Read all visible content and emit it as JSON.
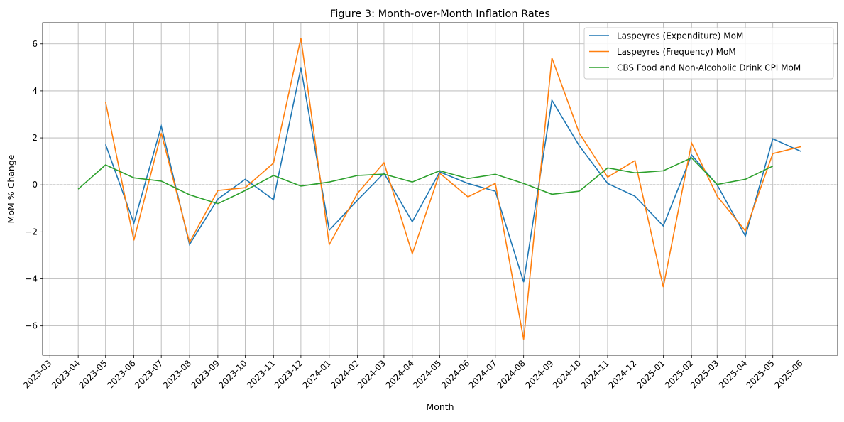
{
  "chart_data": {
    "type": "line",
    "title": "Figure 3: Month-over-Month Inflation Rates",
    "xlabel": "Month",
    "ylabel": "MoM % Change",
    "xlim": [
      "2023-02-21",
      "2025-07-11"
    ],
    "ylim": [
      -7.25,
      6.9
    ],
    "grid": true,
    "zero_line": {
      "y": 0,
      "style": "dashed",
      "color": "#808080"
    },
    "legend_placement": "top-right",
    "x_ticks": [
      "2023-03",
      "2023-04",
      "2023-05",
      "2023-06",
      "2023-07",
      "2023-08",
      "2023-09",
      "2023-10",
      "2023-11",
      "2023-12",
      "2024-01",
      "2024-02",
      "2024-03",
      "2024-04",
      "2024-05",
      "2024-06",
      "2024-07",
      "2024-08",
      "2024-09",
      "2024-10",
      "2024-11",
      "2024-12",
      "2025-01",
      "2025-02",
      "2025-03",
      "2025-04",
      "2025-05",
      "2025-06"
    ],
    "y_ticks": [
      6,
      4,
      2,
      0,
      -2,
      -4,
      -6
    ],
    "series": [
      {
        "name": "Laspeyres (Expenditure) MoM",
        "color": "#1f77b4",
        "x": [
          "2023-05",
          "2023-06",
          "2023-07",
          "2023-08",
          "2023-09",
          "2023-10",
          "2023-11",
          "2023-12",
          "2024-01",
          "2024-02",
          "2024-03",
          "2024-04",
          "2024-05",
          "2024-06",
          "2024-07",
          "2024-08",
          "2024-09",
          "2024-10",
          "2024-11",
          "2024-12",
          "2025-01",
          "2025-02",
          "2025-03",
          "2025-04",
          "2025-05",
          "2025-06"
        ],
        "values": [
          1.72,
          -1.63,
          2.5,
          -2.54,
          -0.6,
          0.24,
          -0.63,
          4.98,
          -1.93,
          -0.65,
          0.5,
          -1.57,
          0.55,
          0.06,
          -0.27,
          -4.14,
          3.6,
          1.66,
          0.06,
          -0.48,
          -1.75,
          1.27,
          0.0,
          -2.18,
          1.96,
          1.42
        ]
      },
      {
        "name": "Laspeyres (Frequency) MoM",
        "color": "#ff7f0e",
        "x": [
          "2023-05",
          "2023-06",
          "2023-07",
          "2023-08",
          "2023-09",
          "2023-10",
          "2023-11",
          "2023-12",
          "2024-01",
          "2024-02",
          "2024-03",
          "2024-04",
          "2024-05",
          "2024-06",
          "2024-07",
          "2024-08",
          "2024-09",
          "2024-10",
          "2024-11",
          "2024-12",
          "2025-01",
          "2025-02",
          "2025-03",
          "2025-04",
          "2025-05",
          "2025-06"
        ],
        "values": [
          3.53,
          -2.36,
          2.2,
          -2.45,
          -0.24,
          -0.12,
          0.93,
          6.25,
          -2.54,
          -0.36,
          0.94,
          -2.93,
          0.5,
          -0.51,
          0.06,
          -6.58,
          5.4,
          2.2,
          0.33,
          1.03,
          -4.35,
          1.78,
          -0.48,
          -1.96,
          1.33,
          1.63
        ]
      },
      {
        "name": "CBS Food and Non-Alcoholic Drink CPI MoM",
        "color": "#2ca02c",
        "x": [
          "2023-04",
          "2023-05",
          "2023-06",
          "2023-07",
          "2023-08",
          "2023-09",
          "2023-10",
          "2023-11",
          "2023-12",
          "2024-01",
          "2024-02",
          "2024-03",
          "2024-04",
          "2024-05",
          "2024-06",
          "2024-07",
          "2024-08",
          "2024-09",
          "2024-10",
          "2024-11",
          "2024-12",
          "2025-01",
          "2025-02",
          "2025-03",
          "2025-04",
          "2025-05"
        ],
        "values": [
          -0.18,
          0.85,
          0.3,
          0.16,
          -0.42,
          -0.8,
          -0.24,
          0.4,
          -0.05,
          0.12,
          0.4,
          0.46,
          0.12,
          0.6,
          0.27,
          0.45,
          0.06,
          -0.4,
          -0.27,
          0.72,
          0.51,
          0.6,
          1.15,
          0.02,
          0.24,
          0.8
        ]
      }
    ]
  }
}
